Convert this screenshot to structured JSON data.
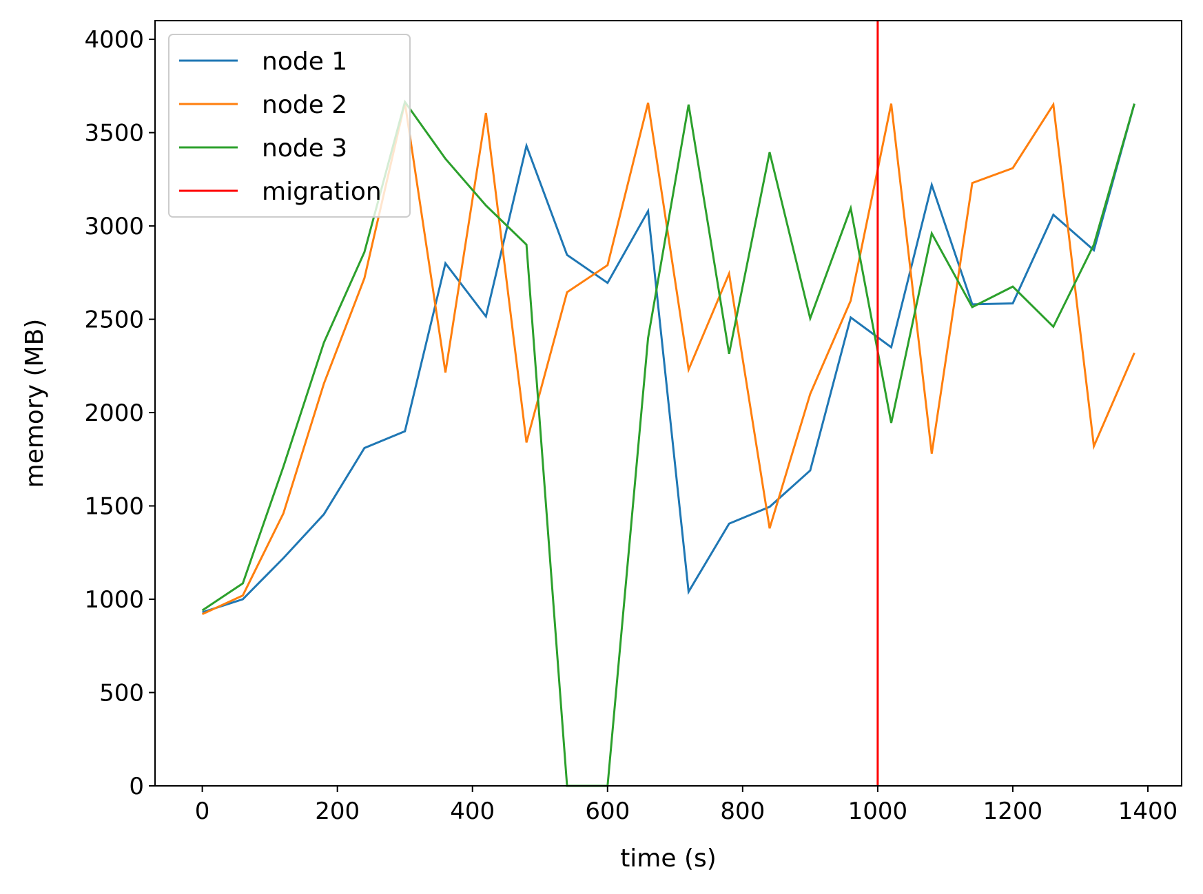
{
  "chart_data": {
    "type": "line",
    "xlabel": "time (s)",
    "ylabel": "memory (MB)",
    "xlim": [
      -70,
      1450
    ],
    "ylim": [
      0,
      4100
    ],
    "xticks": [
      0,
      200,
      400,
      600,
      800,
      1000,
      1200,
      1400
    ],
    "yticks": [
      0,
      500,
      1000,
      1500,
      2000,
      2500,
      3000,
      3500,
      4000
    ],
    "grid": false,
    "legend_position": "top-left",
    "x": [
      0,
      60,
      120,
      180,
      240,
      300,
      360,
      420,
      480,
      540,
      600,
      660,
      720,
      780,
      840,
      900,
      960,
      1020,
      1080,
      1140,
      1200,
      1260,
      1320,
      1380
    ],
    "series": [
      {
        "name": "node 1",
        "color": "#1f77b4",
        "values": [
          930,
          1000,
          1220,
          1455,
          1810,
          1900,
          2800,
          2515,
          3430,
          2845,
          2695,
          3080,
          1040,
          1405,
          1495,
          1690,
          2510,
          2350,
          3220,
          2580,
          2585,
          3060,
          2870,
          3655
        ]
      },
      {
        "name": "node 2",
        "color": "#ff7f0e",
        "values": [
          920,
          1020,
          1460,
          2155,
          2720,
          3660,
          2215,
          3605,
          1840,
          2645,
          2790,
          3660,
          2230,
          2745,
          1380,
          2100,
          2600,
          3655,
          1780,
          3230,
          3310,
          3650,
          1820,
          2320
        ]
      },
      {
        "name": "node 3",
        "color": "#2ca02c",
        "values": [
          940,
          1085,
          1710,
          2375,
          2860,
          3665,
          3360,
          3110,
          2900,
          0,
          0,
          2400,
          3650,
          2315,
          3395,
          2505,
          3095,
          1945,
          2960,
          2565,
          2675,
          2460,
          2900,
          3655
        ]
      }
    ],
    "vline": {
      "name": "migration",
      "x": 1000,
      "color": "#ff0000"
    }
  }
}
